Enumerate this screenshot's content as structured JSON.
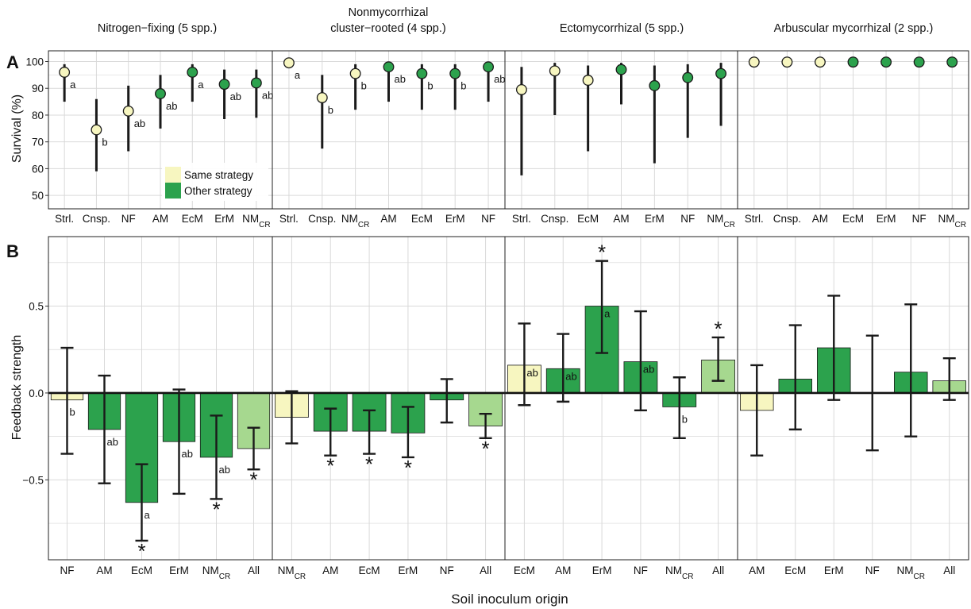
{
  "column_titles": [
    {
      "line1": "Nitrogen−fixing (5 spp.)",
      "line2": ""
    },
    {
      "line1": "Nonmycorrhizal",
      "line2": "cluster−rooted (4 spp.)"
    },
    {
      "line1": "Ectomycorrhizal (5 spp.)",
      "line2": ""
    },
    {
      "line1": "Arbuscular mycorrhizal (2 spp.)",
      "line2": ""
    }
  ],
  "panel_labels": {
    "a": "A",
    "b": "B"
  },
  "ylabel_a": "Survival (%)",
  "ylabel_b": "Feedback strength",
  "xlabel": "Soil inoculum origin",
  "legend": [
    {
      "label": "Same strategy",
      "color": "#f7f6c0"
    },
    {
      "label": "Other strategy",
      "color": "#2ca24d"
    }
  ],
  "colors": {
    "same": "#f7f6c0",
    "other": "#2ca24d",
    "all": "#a6d88f",
    "grid": "#d9d9d9",
    "border": "#222222"
  },
  "chart_data": [
    {
      "type": "scatter",
      "panel": "A",
      "ylabel": "Survival (%)",
      "ylim": [
        45,
        104
      ],
      "yticks": [
        50,
        60,
        70,
        80,
        90,
        100
      ],
      "grid": true,
      "legend_position": "bottom-right of first panel",
      "facets": [
        {
          "title": "Nitrogen−fixing (5 spp.)",
          "points": [
            {
              "x": "Strl.",
              "y": 96,
              "lo": 85,
              "hi": 99,
              "group": "same",
              "letter": "a"
            },
            {
              "x": "Cnsp.",
              "y": 74.5,
              "lo": 59,
              "hi": 86,
              "group": "same",
              "letter": "b"
            },
            {
              "x": "NF",
              "y": 81.5,
              "lo": 66.5,
              "hi": 91,
              "group": "same",
              "letter": "ab"
            },
            {
              "x": "AM",
              "y": 88,
              "lo": 75,
              "hi": 95,
              "group": "other",
              "letter": "ab"
            },
            {
              "x": "EcM",
              "y": 96,
              "lo": 85,
              "hi": 99,
              "group": "other",
              "letter": "a"
            },
            {
              "x": "ErM",
              "y": 91.5,
              "lo": 78.5,
              "hi": 97,
              "group": "other",
              "letter": "ab"
            },
            {
              "x": "NM",
              "sub": "CR",
              "y": 92,
              "lo": 79,
              "hi": 97,
              "group": "other",
              "letter": "ab"
            }
          ]
        },
        {
          "title": "Nonmycorrhizal cluster−rooted (4 spp.)",
          "points": [
            {
              "x": "Strl.",
              "y": 99.5,
              "lo": 99.5,
              "hi": 99.5,
              "group": "same",
              "letter": "a"
            },
            {
              "x": "Cnsp.",
              "y": 86.5,
              "lo": 67.5,
              "hi": 95,
              "group": "same",
              "letter": "b"
            },
            {
              "x": "NM",
              "sub": "CR",
              "y": 95.5,
              "lo": 82,
              "hi": 99,
              "group": "same",
              "letter": "b"
            },
            {
              "x": "AM",
              "y": 98,
              "lo": 85,
              "hi": 99.5,
              "group": "other",
              "letter": "ab"
            },
            {
              "x": "EcM",
              "y": 95.5,
              "lo": 82,
              "hi": 99,
              "group": "other",
              "letter": "b"
            },
            {
              "x": "ErM",
              "y": 95.5,
              "lo": 82,
              "hi": 99,
              "group": "other",
              "letter": "b"
            },
            {
              "x": "NF",
              "y": 98,
              "lo": 85,
              "hi": 99.5,
              "group": "other",
              "letter": "ab"
            }
          ]
        },
        {
          "title": "Ectomycorrhizal (5 spp.)",
          "points": [
            {
              "x": "Strl.",
              "y": 89.5,
              "lo": 57.5,
              "hi": 98,
              "group": "same",
              "letter": ""
            },
            {
              "x": "Cnsp.",
              "y": 96.5,
              "lo": 80,
              "hi": 99.5,
              "group": "same",
              "letter": ""
            },
            {
              "x": "EcM",
              "y": 93,
              "lo": 66.5,
              "hi": 98.5,
              "group": "same",
              "letter": ""
            },
            {
              "x": "AM",
              "y": 97,
              "lo": 84,
              "hi": 99.5,
              "group": "other",
              "letter": ""
            },
            {
              "x": "ErM",
              "y": 91,
              "lo": 62,
              "hi": 98.5,
              "group": "other",
              "letter": ""
            },
            {
              "x": "NF",
              "y": 94,
              "lo": 71.5,
              "hi": 99,
              "group": "other",
              "letter": ""
            },
            {
              "x": "NM",
              "sub": "CR",
              "y": 95.5,
              "lo": 76,
              "hi": 99.5,
              "group": "other",
              "letter": ""
            }
          ]
        },
        {
          "title": "Arbuscular mycorrhizal (2 spp.)",
          "points": [
            {
              "x": "Strl.",
              "y": 99.8,
              "lo": 99.8,
              "hi": 99.8,
              "group": "same",
              "letter": ""
            },
            {
              "x": "Cnsp.",
              "y": 99.8,
              "lo": 99.8,
              "hi": 99.8,
              "group": "same",
              "letter": ""
            },
            {
              "x": "AM",
              "y": 99.8,
              "lo": 99.8,
              "hi": 99.8,
              "group": "same",
              "letter": ""
            },
            {
              "x": "EcM",
              "y": 99.8,
              "lo": 99.8,
              "hi": 99.8,
              "group": "other",
              "letter": ""
            },
            {
              "x": "ErM",
              "y": 99.8,
              "lo": 99.8,
              "hi": 99.8,
              "group": "other",
              "letter": ""
            },
            {
              "x": "NF",
              "y": 99.8,
              "lo": 99.8,
              "hi": 99.8,
              "group": "other",
              "letter": ""
            },
            {
              "x": "NM",
              "sub": "CR",
              "y": 99.8,
              "lo": 99.8,
              "hi": 99.8,
              "group": "other",
              "letter": ""
            }
          ]
        }
      ]
    },
    {
      "type": "bar",
      "panel": "B",
      "ylabel": "Feedback strength",
      "xlabel": "Soil inoculum origin",
      "ylim": [
        -0.96,
        0.9
      ],
      "yticks": [
        -0.5,
        0.0,
        0.5
      ],
      "ytick_labels": [
        "−0.5",
        "0.0",
        "0.5"
      ],
      "grid": true,
      "facets": [
        {
          "bars": [
            {
              "x": "NF",
              "value": -0.04,
              "lo": -0.35,
              "hi": 0.26,
              "group": "same",
              "letter": "b",
              "star": false
            },
            {
              "x": "AM",
              "value": -0.21,
              "lo": -0.52,
              "hi": 0.1,
              "group": "other",
              "letter": "ab",
              "star": false
            },
            {
              "x": "EcM",
              "value": -0.63,
              "lo": -0.85,
              "hi": -0.41,
              "group": "other",
              "letter": "a",
              "star": true
            },
            {
              "x": "ErM",
              "value": -0.28,
              "lo": -0.58,
              "hi": 0.02,
              "group": "other",
              "letter": "ab",
              "star": false
            },
            {
              "x": "NM",
              "sub": "CR",
              "value": -0.37,
              "lo": -0.61,
              "hi": -0.13,
              "group": "other",
              "letter": "ab",
              "star": true
            },
            {
              "x": "All",
              "value": -0.32,
              "lo": -0.44,
              "hi": -0.2,
              "group": "all",
              "letter": "",
              "star": true
            }
          ]
        },
        {
          "bars": [
            {
              "x": "NM",
              "sub": "CR",
              "value": -0.14,
              "lo": -0.29,
              "hi": 0.01,
              "group": "same",
              "letter": "",
              "star": false
            },
            {
              "x": "AM",
              "value": -0.22,
              "lo": -0.36,
              "hi": -0.09,
              "group": "other",
              "letter": "",
              "star": true
            },
            {
              "x": "EcM",
              "value": -0.22,
              "lo": -0.35,
              "hi": -0.1,
              "group": "other",
              "letter": "",
              "star": true
            },
            {
              "x": "ErM",
              "value": -0.23,
              "lo": -0.37,
              "hi": -0.08,
              "group": "other",
              "letter": "",
              "star": true
            },
            {
              "x": "NF",
              "value": -0.04,
              "lo": -0.17,
              "hi": 0.08,
              "group": "other",
              "letter": "",
              "star": false
            },
            {
              "x": "All",
              "value": -0.19,
              "lo": -0.26,
              "hi": -0.12,
              "group": "all",
              "letter": "",
              "star": true
            }
          ]
        },
        {
          "bars": [
            {
              "x": "EcM",
              "value": 0.16,
              "lo": -0.07,
              "hi": 0.4,
              "group": "same",
              "letter": "ab",
              "star": false
            },
            {
              "x": "AM",
              "value": 0.14,
              "lo": -0.05,
              "hi": 0.34,
              "group": "other",
              "letter": "ab",
              "star": false
            },
            {
              "x": "ErM",
              "value": 0.5,
              "lo": 0.23,
              "hi": 0.76,
              "group": "other",
              "letter": "a",
              "star": true
            },
            {
              "x": "NF",
              "value": 0.18,
              "lo": -0.1,
              "hi": 0.47,
              "group": "other",
              "letter": "ab",
              "star": false
            },
            {
              "x": "NM",
              "sub": "CR",
              "value": -0.08,
              "lo": -0.26,
              "hi": 0.09,
              "group": "other",
              "letter": "b",
              "star": false
            },
            {
              "x": "All",
              "value": 0.19,
              "lo": 0.07,
              "hi": 0.32,
              "group": "all",
              "letter": "",
              "star": true
            }
          ]
        },
        {
          "bars": [
            {
              "x": "AM",
              "value": -0.1,
              "lo": -0.36,
              "hi": 0.16,
              "group": "same",
              "letter": "",
              "star": false
            },
            {
              "x": "EcM",
              "value": 0.08,
              "lo": -0.21,
              "hi": 0.39,
              "group": "other",
              "letter": "",
              "star": false
            },
            {
              "x": "ErM",
              "value": 0.26,
              "lo": -0.04,
              "hi": 0.56,
              "group": "other",
              "letter": "",
              "star": false
            },
            {
              "x": "NF",
              "value": 0.0,
              "lo": -0.33,
              "hi": 0.33,
              "group": "other",
              "letter": "",
              "star": false
            },
            {
              "x": "NM",
              "sub": "CR",
              "value": 0.12,
              "lo": -0.25,
              "hi": 0.51,
              "group": "other",
              "letter": "",
              "star": false
            },
            {
              "x": "All",
              "value": 0.07,
              "lo": -0.04,
              "hi": 0.2,
              "group": "all",
              "letter": "",
              "star": false
            }
          ]
        }
      ]
    }
  ]
}
